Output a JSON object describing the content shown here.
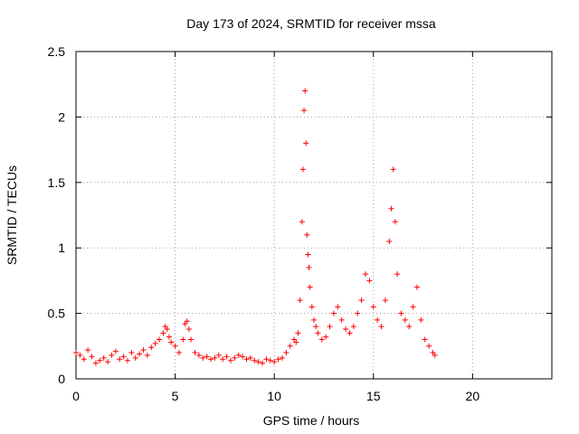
{
  "chart_data": {
    "type": "scatter",
    "title": "Day 173 of 2024, SRMTID for receiver mssa",
    "xlabel": "GPS time / hours",
    "ylabel": "SRMTID / TECUs",
    "xlim": [
      0,
      24
    ],
    "ylim": [
      0,
      2.5
    ],
    "xticks": [
      0,
      5,
      10,
      15,
      20
    ],
    "xtick_labels": [
      "0",
      "5",
      "10",
      "15",
      "20"
    ],
    "yticks": [
      0,
      0.5,
      1,
      1.5,
      2,
      2.5
    ],
    "ytick_labels": [
      "0",
      "0.5",
      "1",
      "1.5",
      "2",
      "2.5"
    ],
    "grid": true,
    "marker": "+",
    "color": "#ff0000",
    "series": [
      {
        "name": "SRMTID",
        "x": [
          0.0,
          0.2,
          0.4,
          0.6,
          0.8,
          1.0,
          1.2,
          1.4,
          1.6,
          1.8,
          2.0,
          2.2,
          2.4,
          2.6,
          2.8,
          3.0,
          3.2,
          3.4,
          3.6,
          3.8,
          4.0,
          4.2,
          4.4,
          4.5,
          4.6,
          4.7,
          4.8,
          5.0,
          5.2,
          5.4,
          5.5,
          5.6,
          5.7,
          5.8,
          6.0,
          6.2,
          6.4,
          6.6,
          6.8,
          7.0,
          7.2,
          7.4,
          7.6,
          7.8,
          8.0,
          8.2,
          8.4,
          8.6,
          8.8,
          9.0,
          9.2,
          9.4,
          9.6,
          9.8,
          10.0,
          10.2,
          10.4,
          10.6,
          10.8,
          11.0,
          11.1,
          11.2,
          11.3,
          11.4,
          11.45,
          11.5,
          11.55,
          11.6,
          11.65,
          11.7,
          11.75,
          11.8,
          11.9,
          12.0,
          12.1,
          12.2,
          12.4,
          12.6,
          12.8,
          13.0,
          13.2,
          13.4,
          13.6,
          13.8,
          14.0,
          14.2,
          14.4,
          14.6,
          14.8,
          15.0,
          15.2,
          15.4,
          15.6,
          15.8,
          15.9,
          16.0,
          16.1,
          16.2,
          16.4,
          16.6,
          16.8,
          17.0,
          17.2,
          17.4,
          17.6,
          17.8,
          18.0,
          18.1
        ],
        "y": [
          0.2,
          0.18,
          0.15,
          0.22,
          0.17,
          0.12,
          0.14,
          0.16,
          0.13,
          0.18,
          0.21,
          0.15,
          0.17,
          0.14,
          0.2,
          0.16,
          0.19,
          0.22,
          0.18,
          0.24,
          0.27,
          0.3,
          0.35,
          0.4,
          0.38,
          0.32,
          0.28,
          0.25,
          0.2,
          0.3,
          0.42,
          0.44,
          0.38,
          0.3,
          0.2,
          0.18,
          0.16,
          0.17,
          0.15,
          0.16,
          0.18,
          0.15,
          0.17,
          0.14,
          0.16,
          0.18,
          0.17,
          0.15,
          0.16,
          0.14,
          0.13,
          0.12,
          0.15,
          0.14,
          0.13,
          0.15,
          0.16,
          0.2,
          0.25,
          0.3,
          0.28,
          0.35,
          0.6,
          1.2,
          1.6,
          2.05,
          2.2,
          1.8,
          1.1,
          0.95,
          0.85,
          0.7,
          0.55,
          0.45,
          0.4,
          0.35,
          0.3,
          0.32,
          0.4,
          0.5,
          0.55,
          0.45,
          0.38,
          0.35,
          0.4,
          0.5,
          0.6,
          0.8,
          0.75,
          0.55,
          0.45,
          0.4,
          0.6,
          1.05,
          1.3,
          1.6,
          1.2,
          0.8,
          0.5,
          0.45,
          0.4,
          0.55,
          0.7,
          0.45,
          0.3,
          0.25,
          0.2,
          0.18
        ]
      }
    ]
  }
}
